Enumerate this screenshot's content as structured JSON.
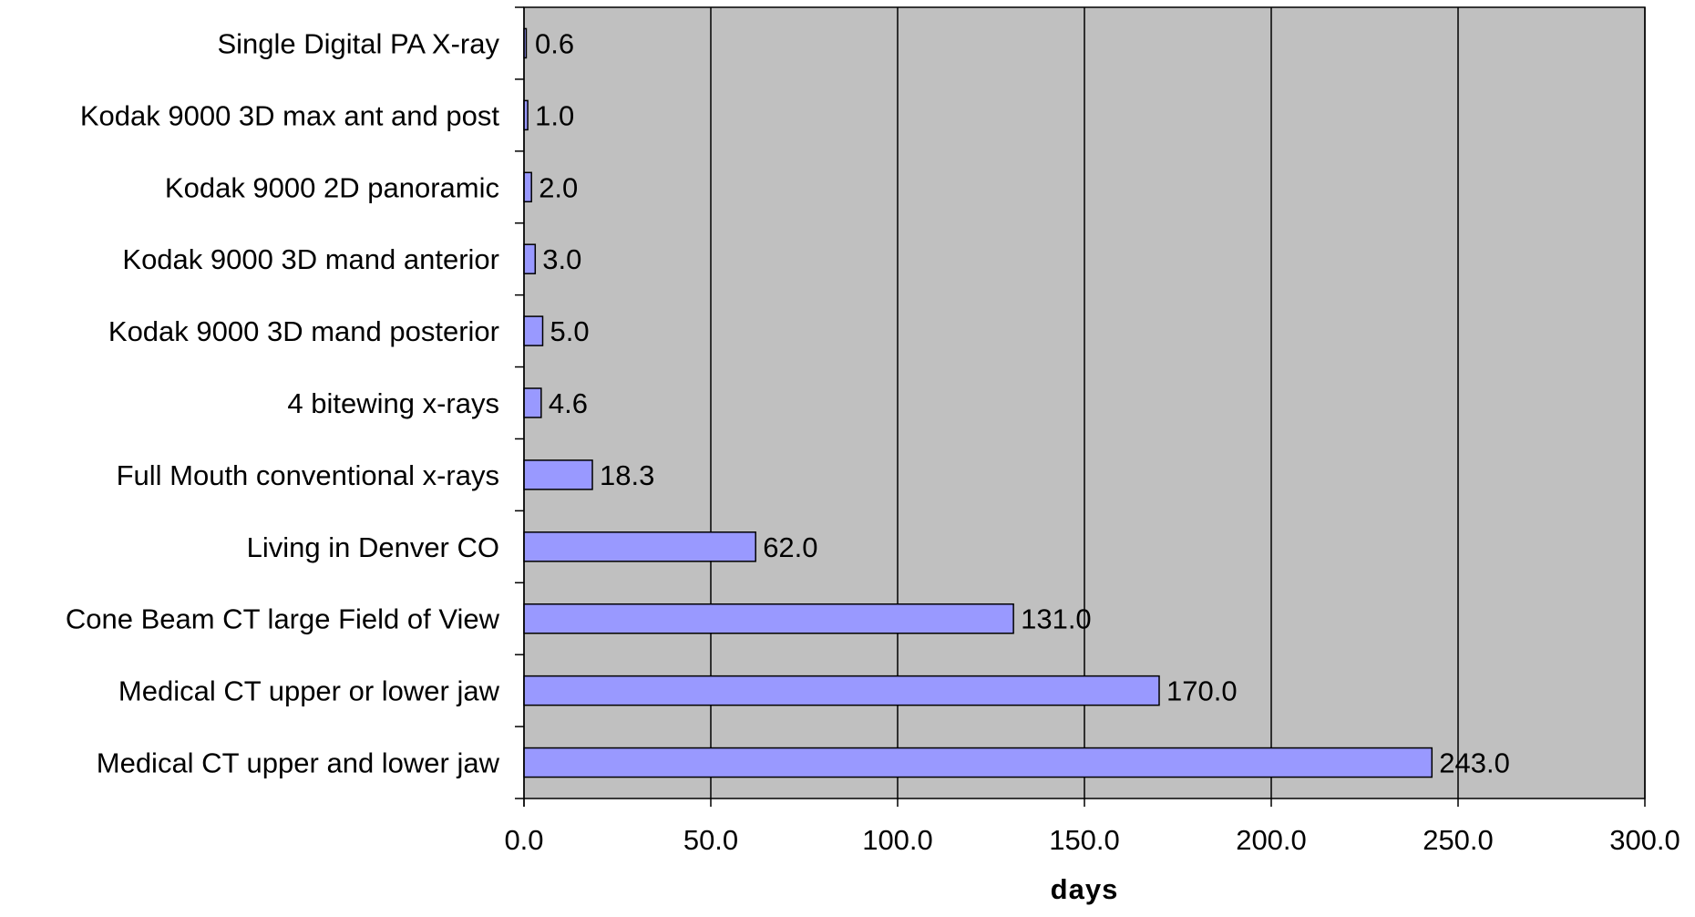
{
  "chart_data": {
    "type": "bar",
    "orientation": "horizontal",
    "categories": [
      "Single Digital PA X-ray",
      "Kodak 9000 3D max ant and post",
      "Kodak 9000 2D panoramic",
      "Kodak 9000 3D mand anterior",
      "Kodak 9000 3D mand posterior",
      "4 bitewing x-rays",
      "Full Mouth conventional x-rays",
      "Living in Denver CO",
      "Cone Beam CT large Field of View",
      "Medical CT upper or lower jaw",
      "Medical CT upper and lower jaw"
    ],
    "values": [
      0.6,
      1.0,
      2.0,
      3.0,
      5.0,
      4.6,
      18.3,
      62.0,
      131.0,
      170.0,
      243.0
    ],
    "value_labels": [
      "0.6",
      "1.0",
      "2.0",
      "3.0",
      "5.0",
      "4.6",
      "18.3",
      "62.0",
      "131.0",
      "170.0",
      "243.0"
    ],
    "xlabel": "days",
    "xlim": [
      0,
      300
    ],
    "xticks": [
      0,
      50,
      100,
      150,
      200,
      250,
      300
    ],
    "xtick_labels": [
      "0.0",
      "50.0",
      "100.0",
      "150.0",
      "200.0",
      "250.0",
      "300.0"
    ],
    "grid": "vertical",
    "legend": "none",
    "colors": {
      "plot_background": "#c0c0c0",
      "bar_fill": "#9999ff",
      "bar_stroke": "#000000",
      "gridline": "#000000"
    }
  }
}
